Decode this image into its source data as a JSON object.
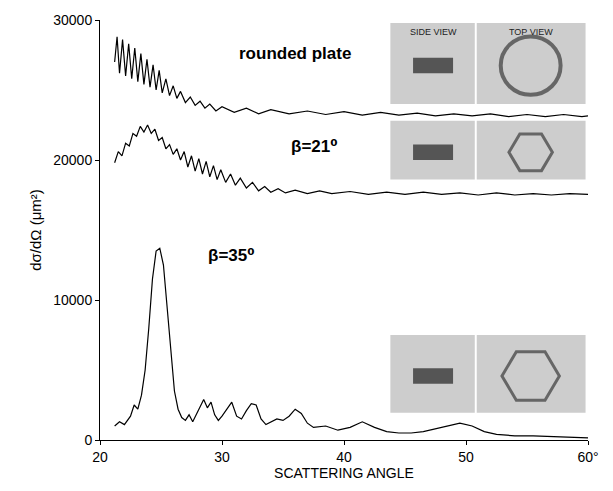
{
  "chart_data": {
    "type": "line",
    "x_label": "SCATTERING ANGLE",
    "y_label": "dσ/dΩ (μm²)",
    "xlim": [
      20,
      60
    ],
    "xticks": [
      20,
      30,
      40,
      50,
      {
        "value": 60,
        "label": "60°"
      }
    ],
    "ylim": [
      0,
      30000
    ],
    "yticks": [
      0,
      10000,
      20000,
      30000
    ],
    "grid": false,
    "annotations": [
      "SIDE VIEW",
      "TOP VIEW"
    ],
    "series": [
      {
        "name": "rounded plate",
        "color": "#000000",
        "x": [
          21.2,
          21.4,
          21.6,
          21.85,
          22.1,
          22.35,
          22.6,
          22.85,
          23.1,
          23.35,
          23.6,
          23.85,
          24.1,
          24.35,
          24.6,
          24.85,
          25.1,
          25.4,
          25.7,
          26.0,
          26.3,
          26.6,
          27.0,
          27.4,
          27.8,
          28.2,
          28.6,
          29.0,
          29.5,
          30.0,
          31,
          32,
          33,
          34,
          35.5,
          37,
          38.5,
          40,
          41.5,
          43,
          44.5,
          46,
          47.5,
          49,
          50.5,
          52,
          53.5,
          55,
          56.5,
          58,
          59.5,
          60
        ],
        "values": [
          27000,
          28800,
          26200,
          28600,
          26000,
          28300,
          25800,
          28000,
          25600,
          27600,
          25400,
          27200,
          25200,
          26800,
          25000,
          26400,
          24800,
          25800,
          24600,
          25300,
          24400,
          24900,
          24100,
          24500,
          23900,
          24200,
          23700,
          24000,
          23500,
          23800,
          23400,
          23700,
          23300,
          23600,
          23300,
          23500,
          23250,
          23450,
          23200,
          23400,
          23200,
          23350,
          23150,
          23300,
          23150,
          23300,
          23100,
          23250,
          23100,
          23250,
          23100,
          23150
        ]
      },
      {
        "name": "β=21⁰",
        "color": "#000000",
        "x": [
          21.2,
          21.5,
          21.8,
          22.1,
          22.4,
          22.7,
          23.0,
          23.3,
          23.6,
          23.9,
          24.2,
          24.5,
          24.8,
          25.1,
          25.4,
          25.7,
          26.0,
          26.3,
          26.6,
          26.9,
          27.2,
          27.5,
          27.8,
          28.1,
          28.4,
          28.7,
          29.0,
          29.3,
          29.6,
          29.9,
          30.3,
          30.7,
          31.1,
          31.5,
          32.0,
          32.5,
          33.0,
          33.5,
          34.0,
          34.6,
          35.2,
          36,
          37,
          38,
          39,
          40.5,
          42,
          43.5,
          45,
          46.5,
          48,
          49.5,
          51,
          52.5,
          54,
          55.5,
          57,
          58.5,
          60
        ],
        "values": [
          19800,
          20600,
          20300,
          21200,
          21000,
          21900,
          21700,
          22400,
          22000,
          22500,
          21900,
          22200,
          21400,
          21600,
          20800,
          21100,
          20400,
          20800,
          20000,
          20600,
          19500,
          20300,
          19200,
          20100,
          19000,
          19900,
          18800,
          19600,
          18600,
          19300,
          18400,
          19000,
          18200,
          18700,
          18000,
          18400,
          17800,
          18100,
          17700,
          17950,
          17650,
          17850,
          17600,
          17800,
          17600,
          17750,
          17550,
          17700,
          17550,
          17700,
          17550,
          17650,
          17500,
          17650,
          17500,
          17600,
          17500,
          17600,
          17550
        ]
      },
      {
        "name": "β=35⁰",
        "color": "#000000",
        "x": [
          21.2,
          21.6,
          22.0,
          22.5,
          22.8,
          23.1,
          23.4,
          23.7,
          24.0,
          24.3,
          24.6,
          24.9,
          25.2,
          25.5,
          25.8,
          26.1,
          26.4,
          26.7,
          27.0,
          27.3,
          27.6,
          27.9,
          28.2,
          28.5,
          28.8,
          29.1,
          29.4,
          29.7,
          30.0,
          30.4,
          30.8,
          31.2,
          31.6,
          32.0,
          32.4,
          32.8,
          33.2,
          33.6,
          34.0,
          34.5,
          35.0,
          35.5,
          36.0,
          36.5,
          37.0,
          37.5,
          38.5,
          39.5,
          40.5,
          41.5,
          42.5,
          43.5,
          44.5,
          45.5,
          46.5,
          47.5,
          48.5,
          49.5,
          50.5,
          51.5,
          52.5,
          54,
          55.5,
          57,
          58.5,
          60
        ],
        "values": [
          1000,
          1300,
          1100,
          1700,
          2500,
          2200,
          3200,
          5000,
          8000,
          11500,
          13500,
          13700,
          12500,
          9500,
          6000,
          3500,
          2200,
          1600,
          1400,
          1800,
          1300,
          1800,
          2400,
          2900,
          2300,
          2700,
          1800,
          1400,
          1700,
          2200,
          2700,
          1700,
          1500,
          2100,
          2600,
          2500,
          1500,
          1100,
          1300,
          1500,
          1400,
          1700,
          2200,
          1900,
          1200,
          900,
          1000,
          700,
          900,
          1300,
          900,
          600,
          500,
          500,
          600,
          800,
          1000,
          1200,
          1000,
          600,
          400,
          300,
          300,
          250,
          200,
          150
        ]
      }
    ]
  }
}
